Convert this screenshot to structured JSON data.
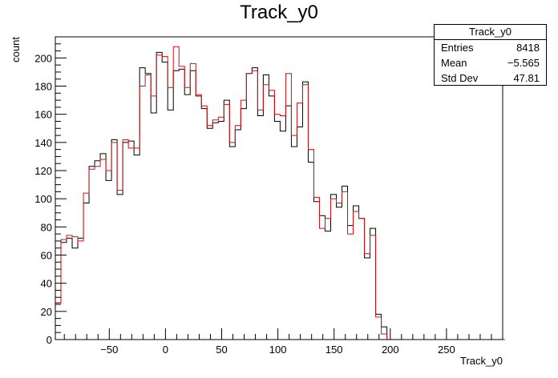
{
  "chart_data": {
    "type": "histogram",
    "title": "Track_y0",
    "xlabel": "Track_y0",
    "ylabel": "count",
    "xlim": [
      -98,
      300
    ],
    "ylim": [
      0,
      215
    ],
    "bin_width": 5,
    "bin_start": -98,
    "x_ticks": [
      -50,
      0,
      50,
      100,
      150,
      200,
      250
    ],
    "y_ticks": [
      0,
      20,
      40,
      60,
      80,
      100,
      120,
      140,
      160,
      180,
      200
    ],
    "series": [
      {
        "color": "#000000",
        "values": [
          26,
          69,
          72,
          65,
          72,
          97,
          123,
          127,
          132,
          113,
          142,
          103,
          140,
          141,
          131,
          193,
          189,
          161,
          204,
          197,
          163,
          191,
          192,
          174,
          191,
          173,
          164,
          150,
          154,
          155,
          170,
          137,
          149,
          164,
          189,
          193,
          159,
          188,
          173,
          155,
          148,
          166,
          137,
          151,
          183,
          126,
          98,
          88,
          77,
          103,
          94,
          109,
          81,
          95,
          86,
          58,
          79,
          18,
          9,
          0,
          0,
          0,
          0,
          0,
          0,
          0,
          0,
          0,
          0,
          0,
          0,
          0,
          0,
          0,
          0,
          0,
          0,
          0,
          0,
          0
        ]
      },
      {
        "color": "#d01010",
        "values": [
          26,
          71,
          74,
          73,
          70,
          104,
          121,
          123,
          128,
          120,
          140,
          106,
          142,
          136,
          136,
          180,
          188,
          173,
          202,
          201,
          179,
          208,
          194,
          179,
          196,
          174,
          166,
          152,
          156,
          158,
          167,
          140,
          152,
          170,
          189,
          191,
          163,
          181,
          177,
          160,
          159,
          189,
          145,
          168,
          181,
          135,
          101,
          79,
          86,
          100,
          97,
          105,
          75,
          91,
          86,
          61,
          74,
          16,
          4,
          0,
          0,
          0,
          0,
          0,
          0,
          0,
          0,
          0,
          0,
          0,
          0,
          0,
          0,
          0,
          0,
          0,
          0,
          0,
          0,
          0
        ]
      }
    ]
  },
  "stats": {
    "title": "Track_y0",
    "rows": [
      {
        "label": "Entries",
        "value": "8418"
      },
      {
        "label": "Mean",
        "value": "−5.565"
      },
      {
        "label": "Std Dev",
        "value": "47.81"
      }
    ]
  }
}
